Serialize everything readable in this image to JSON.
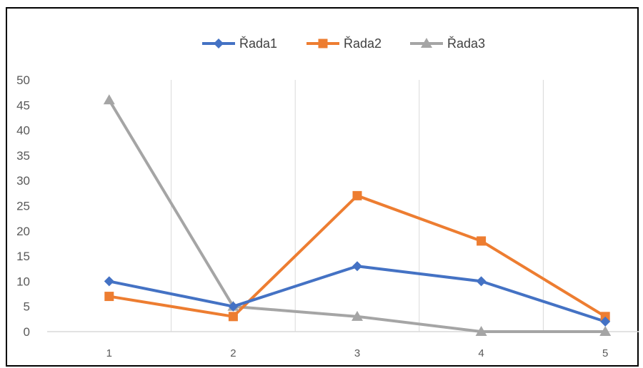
{
  "chart_data": {
    "type": "line",
    "categories": [
      "1",
      "2",
      "3",
      "4",
      "5"
    ],
    "series": [
      {
        "name": "Řada1",
        "values": [
          10,
          5,
          13,
          10,
          2
        ],
        "color": "#4472C4",
        "marker": "diamond"
      },
      {
        "name": "Řada2",
        "values": [
          7,
          3,
          27,
          18,
          3
        ],
        "color": "#ED7D31",
        "marker": "square"
      },
      {
        "name": "Řada3",
        "values": [
          46,
          5,
          3,
          0,
          0
        ],
        "color": "#A5A5A5",
        "marker": "triangle"
      }
    ],
    "ylim": [
      0,
      50
    ],
    "yticks": [
      "0",
      "5",
      "10",
      "15",
      "20",
      "25",
      "30",
      "35",
      "40",
      "45",
      "50"
    ],
    "grid": "vertical",
    "legend_position": "top"
  }
}
